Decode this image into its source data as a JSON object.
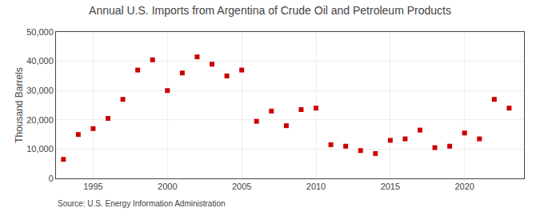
{
  "chart_data": {
    "type": "scatter",
    "title": "Annual U.S. Imports from Argentina of Crude Oil and Petroleum Products",
    "y_label": "Thousand Barrels",
    "annotations": [
      "Source: U.S. Energy Information Administration"
    ],
    "x": [
      1993,
      1994,
      1995,
      1996,
      1997,
      1998,
      1999,
      2000,
      2001,
      2002,
      2003,
      2004,
      2005,
      2006,
      2007,
      2008,
      2009,
      2010,
      2011,
      2012,
      2013,
      2014,
      2015,
      2016,
      2017,
      2018,
      2019,
      2020,
      2021,
      2022,
      2023
    ],
    "values": [
      6500,
      15000,
      17000,
      20500,
      27000,
      37000,
      40500,
      30000,
      36000,
      41500,
      39000,
      35000,
      37000,
      19500,
      23000,
      18000,
      23500,
      24000,
      11500,
      11000,
      9500,
      8500,
      13000,
      13500,
      16500,
      10500,
      11000,
      15500,
      13500,
      27000,
      24000
    ],
    "color": "#cc0000",
    "marker": "square",
    "xlim": [
      1992.5,
      2024
    ],
    "xticks": [
      1995,
      2000,
      2005,
      2010,
      2015,
      2020
    ],
    "ylim": [
      0,
      50000
    ],
    "yticks": [
      0,
      {
        "value": 10000,
        "label": "10,000"
      },
      {
        "value": 20000,
        "label": "20,000"
      },
      {
        "value": 30000,
        "label": "30,000"
      },
      {
        "value": 40000,
        "label": "40,000"
      },
      {
        "value": 50000,
        "label": "50,000"
      }
    ],
    "grid": true
  }
}
